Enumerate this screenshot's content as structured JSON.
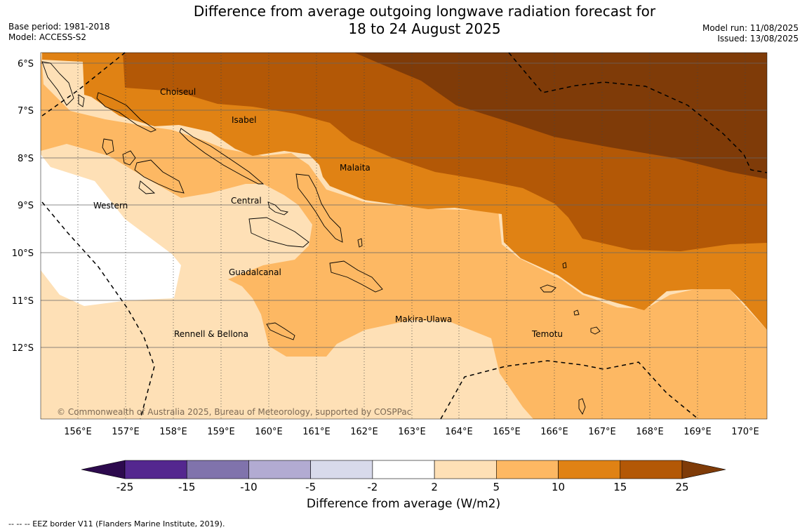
{
  "title_line1": "Difference from average outgoing longwave radiation forecast for",
  "title_line2": "18 to 24 August 2025",
  "meta_left": {
    "base_period": "Base period: 1981-2018",
    "model": "Model: ACCESS-S2"
  },
  "meta_right": {
    "model_run": "Model run: 11/08/2025",
    "issued": "Issued: 13/08/2025"
  },
  "lat_ticks": [
    "6°S",
    "7°S",
    "8°S",
    "9°S",
    "10°S",
    "11°S",
    "12°S"
  ],
  "lon_ticks": [
    "156°E",
    "157°E",
    "158°E",
    "159°E",
    "160°E",
    "161°E",
    "162°E",
    "163°E",
    "164°E",
    "165°E",
    "166°E",
    "167°E",
    "168°E",
    "169°E",
    "170°E"
  ],
  "places": {
    "choiseul": "Choiseul",
    "isabel": "Isabel",
    "malaita": "Malaita",
    "central": "Central",
    "western": "Western",
    "guadalcanal": "Guadalcanal",
    "makira": "Makira-Ulawa",
    "temotu": "Temotu",
    "rennell": "Rennell & Bellona"
  },
  "copyright": "© Commonwealth of Australia 2025, Bureau of Meteorology, supported by COSPPac",
  "colorbar": {
    "levels": [
      "-25",
      "-15",
      "-10",
      "-5",
      "-2",
      "2",
      "5",
      "10",
      "15",
      "25"
    ],
    "colors": [
      "#2d0a4e",
      "#54278f",
      "#8073ac",
      "#b2abd2",
      "#d8daeb",
      "#ffffff",
      "#fee0b6",
      "#fdb863",
      "#e08214",
      "#b35806",
      "#7f3b08"
    ],
    "label": "Difference from average (W/m2)"
  },
  "footnote": "--  --  -- EEZ border V11 (Flanders Marine Institute, 2019).",
  "legend_colors": {
    "white": "#ffffff",
    "c2_5": "#fee0b6",
    "c5_10": "#fdb863",
    "c10_15": "#e08214",
    "c15_25": "#b35806",
    "c25": "#7f3b08"
  }
}
